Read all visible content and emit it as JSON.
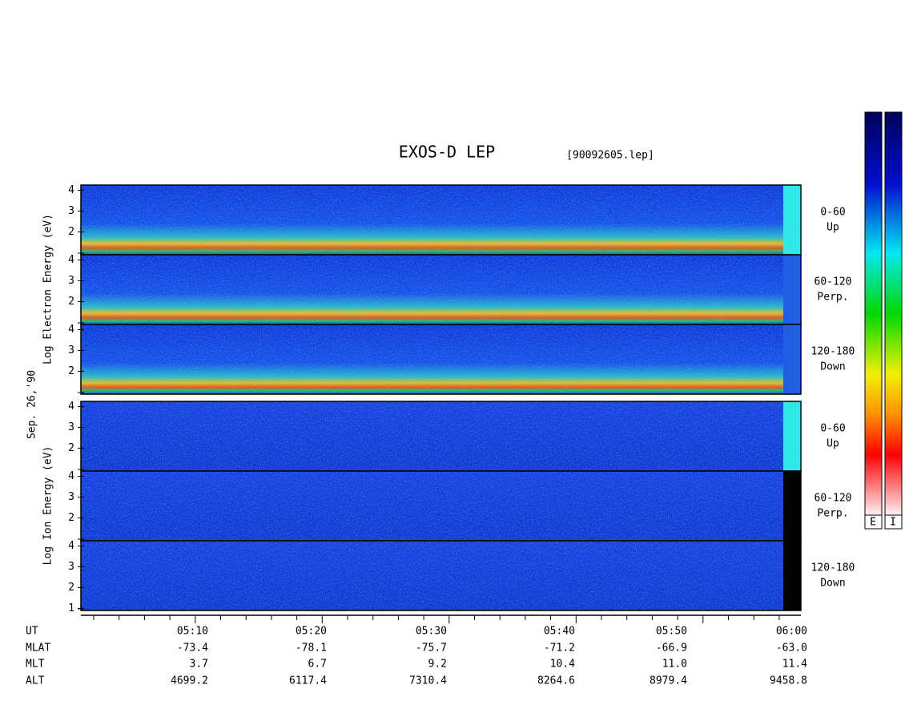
{
  "chart_data": {
    "type": "spectrogram",
    "title": "EXOS-D LEP",
    "file": "[90092605.lep]",
    "date": "Sep. 26,'90",
    "electron_label": "Log Electron Energy (eV)",
    "ion_label": "Log Ion Energy (eV)",
    "ylim": [
      0.9,
      4.25
    ],
    "panels": [
      {
        "species": "electron",
        "angle": "0-60",
        "direction": "Up",
        "yticks": [
          2,
          3,
          4
        ]
      },
      {
        "species": "electron",
        "angle": "60-120",
        "direction": "Perp.",
        "yticks": [
          2,
          3,
          4
        ]
      },
      {
        "species": "electron",
        "angle": "120-180",
        "direction": "Down",
        "yticks": [
          2,
          3,
          4
        ]
      },
      {
        "species": "ion",
        "angle": "0-60",
        "direction": "Up",
        "yticks": [
          2,
          3,
          4
        ]
      },
      {
        "species": "ion",
        "angle": "60-120",
        "direction": "Perp.",
        "yticks": [
          2,
          3,
          4
        ]
      },
      {
        "species": "ion",
        "angle": "120-180",
        "direction": "Down",
        "yticks": [
          1,
          2,
          3,
          4
        ]
      }
    ],
    "ephemeris": [
      {
        "name": "UT",
        "values": [
          "05:10",
          "05:20",
          "05:30",
          "05:40",
          "05:50",
          "06:00"
        ]
      },
      {
        "name": "MLAT",
        "values": [
          "-73.4",
          "-78.1",
          "-75.7",
          "-71.2",
          "-66.9",
          "-63.0"
        ]
      },
      {
        "name": "MLT",
        "values": [
          "3.7",
          "6.7",
          "9.2",
          "10.4",
          "11.0",
          "11.4"
        ]
      },
      {
        "name": "ALT",
        "values": [
          "4699.2",
          "6117.4",
          "7310.4",
          "8264.6",
          "8979.4",
          "9458.8"
        ]
      }
    ],
    "colorbars": [
      "E",
      "I"
    ]
  }
}
